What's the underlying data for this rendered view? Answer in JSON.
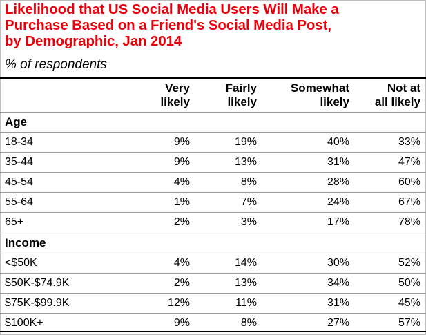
{
  "header": {
    "title_lines": [
      "Likelihood that US Social Media Users Will Make a",
      "Purchase Based on a Friend's Social Media Post,",
      "by Demographic, Jan 2014"
    ],
    "subtitle": "% of respondents"
  },
  "table": {
    "columns": [
      {
        "lines": [
          "Very",
          "likely"
        ]
      },
      {
        "lines": [
          "Fairly",
          "likely"
        ]
      },
      {
        "lines": [
          "Somewhat",
          "likely"
        ]
      },
      {
        "lines": [
          "Not at",
          "all likely"
        ]
      }
    ],
    "sections": [
      {
        "label": "Age",
        "rows": [
          {
            "label": "18-34",
            "values": [
              "9%",
              "19%",
              "40%",
              "33%"
            ]
          },
          {
            "label": "35-44",
            "values": [
              "9%",
              "13%",
              "31%",
              "47%"
            ]
          },
          {
            "label": "45-54",
            "values": [
              "4%",
              "8%",
              "28%",
              "60%"
            ]
          },
          {
            "label": "55-64",
            "values": [
              "1%",
              "7%",
              "24%",
              "67%"
            ]
          },
          {
            "label": "65+",
            "values": [
              "2%",
              "3%",
              "17%",
              "78%"
            ]
          }
        ]
      },
      {
        "label": "Income",
        "rows": [
          {
            "label": "<$50K",
            "values": [
              "4%",
              "14%",
              "30%",
              "52%"
            ]
          },
          {
            "label": "$50K-$74.9K",
            "values": [
              "2%",
              "13%",
              "34%",
              "50%"
            ]
          },
          {
            "label": "$75K-$99.9K",
            "values": [
              "12%",
              "11%",
              "31%",
              "45%"
            ]
          },
          {
            "label": "$100K+",
            "values": [
              "9%",
              "8%",
              "27%",
              "57%"
            ]
          }
        ]
      }
    ]
  },
  "chart_data": {
    "type": "table",
    "title": "Likelihood that US Social Media Users Will Make a Purchase Based on a Friend's Social Media Post, by Demographic, Jan 2014",
    "subtitle": "% of respondents",
    "columns": [
      "Very likely",
      "Fairly likely",
      "Somewhat likely",
      "Not at all likely"
    ],
    "groups": [
      {
        "name": "Age",
        "rows": [
          {
            "label": "18-34",
            "values": [
              9,
              19,
              40,
              33
            ]
          },
          {
            "label": "35-44",
            "values": [
              9,
              13,
              31,
              47
            ]
          },
          {
            "label": "45-54",
            "values": [
              4,
              8,
              28,
              60
            ]
          },
          {
            "label": "55-64",
            "values": [
              1,
              7,
              24,
              67
            ]
          },
          {
            "label": "65+",
            "values": [
              2,
              3,
              17,
              78
            ]
          }
        ]
      },
      {
        "name": "Income",
        "rows": [
          {
            "label": "<$50K",
            "values": [
              4,
              14,
              30,
              52
            ]
          },
          {
            "label": "$50K-$74.9K",
            "values": [
              2,
              13,
              34,
              50
            ]
          },
          {
            "label": "$75K-$99.9K",
            "values": [
              12,
              11,
              31,
              45
            ]
          },
          {
            "label": "$100K+",
            "values": [
              9,
              8,
              27,
              57
            ]
          }
        ]
      }
    ],
    "unit": "%"
  }
}
